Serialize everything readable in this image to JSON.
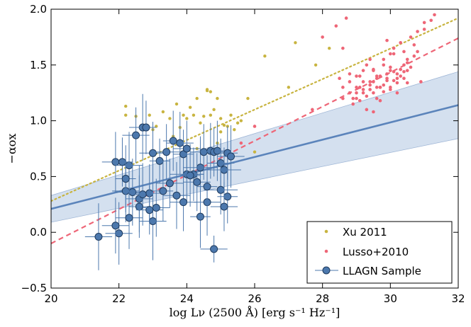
{
  "chart_data": {
    "type": "scatter",
    "xlabel": "log Lν (2500 Å) [erg s⁻¹ Hz⁻¹]",
    "ylabel": "−αox",
    "xlim": [
      20,
      32
    ],
    "ylim": [
      -0.5,
      2.0
    ],
    "xticks": [
      20,
      22,
      24,
      26,
      28,
      30,
      32
    ],
    "yticks": [
      -0.5,
      0.0,
      0.5,
      1.0,
      1.5,
      2.0
    ],
    "ytick_labels": [
      "−0.5",
      "0.0",
      "0.5",
      "1.0",
      "1.5",
      "2.0"
    ],
    "legend_position": "bottom-right",
    "legend": [
      "Xu 2011",
      "Lusso+2010",
      "LLAGN Sample"
    ],
    "colors": {
      "xu": "#c8b440",
      "lusso": "#ee6677",
      "llagn": "#4c78ad",
      "fit": "#5b84bb",
      "band": "#c6d6ea"
    },
    "fits": {
      "xu": {
        "x": [
          20,
          32
        ],
        "y": [
          0.28,
          1.92
        ],
        "style": "dotted"
      },
      "lusso": {
        "x": [
          20,
          32
        ],
        "y": [
          -0.1,
          1.74
        ],
        "style": "dashed"
      },
      "llagn": {
        "x": [
          20,
          32
        ],
        "y": [
          0.21,
          1.14
        ],
        "band_lower": [
          0.09,
          0.84
        ],
        "band_upper": [
          0.33,
          1.44
        ],
        "style": "solid"
      }
    },
    "series": [
      {
        "name": "Xu 2011",
        "x": [
          22.2,
          22.5,
          22.7,
          22.9,
          23.1,
          23.3,
          23.5,
          23.7,
          23.8,
          23.9,
          24.0,
          24.1,
          24.2,
          24.3,
          24.4,
          24.5,
          24.6,
          24.7,
          24.8,
          24.9,
          25.0,
          25.1,
          25.2,
          25.3,
          25.4,
          25.6,
          25.8,
          26.3,
          27.0,
          27.2,
          27.8,
          28.2,
          22.2,
          22.8,
          23.0,
          23.6,
          24.6,
          24.7,
          25.0,
          25.5,
          26.0,
          24.9,
          24.3
        ],
        "y": [
          1.13,
          1.04,
          0.95,
          1.05,
          0.95,
          1.08,
          1.02,
          1.15,
          0.94,
          1.05,
          1.02,
          1.12,
          1.05,
          1.2,
          0.98,
          1.04,
          1.28,
          1.05,
          1.1,
          1.2,
          1.02,
          0.96,
          0.95,
          1.05,
          0.92,
          1.0,
          1.2,
          1.58,
          1.3,
          1.7,
          1.5,
          1.65,
          1.05,
          0.93,
          0.92,
          0.86,
          1.27,
          1.26,
          0.9,
          0.98,
          0.72,
          0.8,
          0.75
        ]
      },
      {
        "name": "Lusso+2010",
        "x": [
          24.8,
          25.6,
          26.0,
          27.7,
          28.0,
          28.4,
          28.6,
          28.8,
          28.9,
          29.0,
          29.1,
          29.2,
          29.3,
          29.4,
          29.5,
          29.6,
          29.7,
          29.8,
          29.9,
          30.0,
          30.1,
          30.2,
          30.3,
          30.4,
          30.5,
          30.6,
          30.8,
          31.0,
          31.2,
          28.6,
          28.8,
          29.0,
          29.2,
          29.4,
          29.6,
          29.8,
          30.0,
          30.2,
          30.4,
          28.9,
          29.1,
          29.3,
          29.5,
          29.7,
          29.9,
          30.1,
          30.3,
          30.5,
          30.7,
          29.0,
          29.5,
          30.0,
          30.5,
          29.2,
          29.8,
          30.4,
          29.6,
          30.2,
          29.4,
          30.0,
          29.7,
          29.3,
          30.1,
          29.9,
          30.6,
          28.7,
          31.3,
          30.9,
          29.5,
          30.3,
          28.5,
          29.1,
          30.7,
          30.0,
          29.6,
          29.8,
          30.2,
          29.4,
          30.8,
          28.8,
          28.6,
          31.0,
          30.5,
          29.2,
          29.9,
          30.1,
          29.7,
          29.5,
          30.4,
          29.0
        ],
        "y": [
          0.72,
          0.8,
          0.95,
          1.1,
          1.75,
          1.85,
          1.65,
          1.35,
          1.2,
          1.3,
          1.4,
          1.25,
          1.5,
          1.35,
          1.45,
          1.3,
          1.4,
          1.55,
          1.38,
          1.45,
          1.6,
          1.42,
          1.7,
          1.5,
          1.55,
          1.75,
          1.8,
          1.82,
          1.9,
          1.3,
          1.25,
          1.2,
          1.35,
          1.28,
          1.4,
          1.32,
          1.48,
          1.38,
          1.44,
          1.15,
          1.18,
          1.22,
          1.25,
          1.3,
          1.42,
          1.36,
          1.46,
          1.52,
          1.58,
          1.4,
          1.35,
          1.3,
          1.45,
          1.45,
          1.5,
          1.62,
          1.2,
          1.25,
          1.55,
          1.6,
          1.18,
          1.1,
          1.65,
          1.72,
          1.48,
          1.92,
          1.95,
          1.35,
          1.08,
          1.4,
          1.38,
          1.3,
          1.68,
          1.28,
          1.38,
          1.26,
          1.34,
          1.32,
          1.62,
          1.42,
          1.2,
          1.88,
          1.34,
          1.28,
          1.36,
          1.44,
          1.3,
          1.46,
          1.38,
          1.25
        ]
      },
      {
        "name": "LLAGN Sample",
        "x": [
          21.9,
          22.3,
          22.1,
          22.5,
          22.7,
          22.8,
          22.4,
          22.2,
          22.9,
          23.0,
          23.2,
          23.4,
          23.6,
          23.8,
          23.9,
          24.0,
          24.2,
          24.4,
          24.5,
          24.7,
          24.8,
          24.9,
          25.0,
          25.1,
          25.2,
          25.3,
          22.0,
          22.6,
          22.7,
          23.0,
          23.5,
          23.7,
          24.1,
          24.3,
          24.6,
          25.0,
          25.2,
          21.4,
          21.9,
          22.3,
          22.6,
          22.9,
          23.3,
          23.9,
          24.4,
          24.8,
          25.1,
          22.2,
          23.1,
          24.0,
          24.6
        ],
        "y": [
          0.63,
          0.6,
          0.63,
          0.87,
          0.94,
          0.94,
          0.36,
          0.37,
          0.35,
          0.71,
          0.64,
          0.72,
          0.82,
          0.8,
          0.7,
          0.52,
          0.52,
          0.58,
          0.72,
          0.73,
          0.72,
          0.73,
          0.62,
          0.56,
          0.71,
          0.68,
          -0.01,
          0.3,
          0.34,
          0.1,
          0.44,
          0.33,
          0.51,
          0.45,
          0.27,
          0.38,
          0.32,
          -0.04,
          0.06,
          0.13,
          0.23,
          0.2,
          0.37,
          0.27,
          0.14,
          -0.15,
          0.23,
          0.48,
          0.22,
          0.75,
          0.41
        ],
        "xerr": [
          0.4,
          0.4,
          0.3,
          0.4,
          0.4,
          0.3,
          0.5,
          0.4,
          0.4,
          0.4,
          0.3,
          0.4,
          0.3,
          0.4,
          0.3,
          0.5,
          0.3,
          0.5,
          0.4,
          0.3,
          0.4,
          0.3,
          0.4,
          0.5,
          0.3,
          0.4,
          0.4,
          0.4,
          0.3,
          0.4,
          0.4,
          0.4,
          0.3,
          0.4,
          0.4,
          0.5,
          0.3,
          0.4,
          0.4,
          0.4,
          0.3,
          0.4,
          0.3,
          0.4,
          0.3,
          0.4,
          0.4,
          0.3,
          0.4,
          0.4,
          0.3
        ],
        "yerr": [
          0.27,
          0.3,
          0.22,
          0.25,
          0.3,
          0.24,
          0.3,
          0.28,
          0.26,
          0.28,
          0.2,
          0.25,
          0.27,
          0.28,
          0.22,
          0.25,
          0.24,
          0.28,
          0.25,
          0.25,
          0.22,
          0.27,
          0.22,
          0.2,
          0.24,
          0.28,
          0.28,
          0.3,
          0.28,
          0.35,
          0.22,
          0.3,
          0.28,
          0.26,
          0.3,
          0.22,
          0.24,
          0.3,
          0.25,
          0.28,
          0.28,
          0.22,
          0.27,
          0.26,
          0.28,
          0.12,
          0.22,
          0.3,
          0.26,
          0.25,
          0.28
        ]
      }
    ]
  }
}
